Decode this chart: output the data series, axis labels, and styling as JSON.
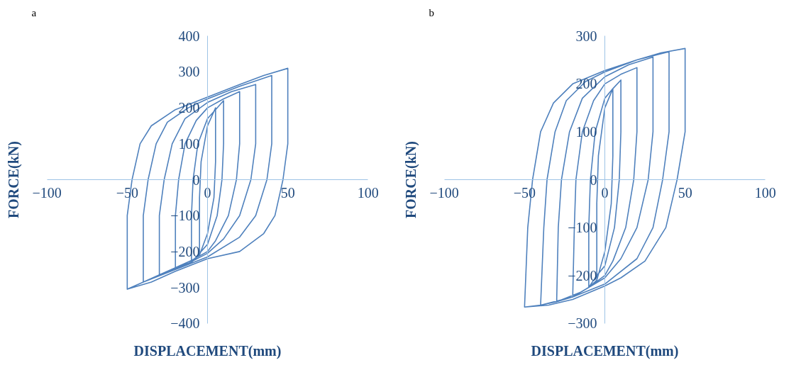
{
  "chart_data": [
    {
      "type": "line",
      "title": "a",
      "xlabel": "DISPLACEMENT(mm)",
      "ylabel": "FORCE(kN)",
      "xlim": [
        -100,
        100
      ],
      "ylim": [
        -400,
        400
      ],
      "xticks": [
        -100,
        -50,
        0,
        50,
        100
      ],
      "yticks": [
        -400,
        -300,
        -200,
        -100,
        0,
        100,
        200,
        300,
        400
      ],
      "grid": false,
      "marker": "none",
      "line_style": "solid",
      "series": [
        {
          "color": "#4f81bd",
          "x": [
            -50,
            -50,
            -47,
            -42,
            -35,
            -20,
            0,
            20,
            35,
            50,
            50,
            47,
            42,
            35,
            20,
            0,
            -20,
            -35,
            -50,
            -40,
            -40,
            -37,
            -32,
            -25,
            -12,
            0,
            20,
            40,
            40,
            37,
            30,
            20,
            0,
            -20,
            -40,
            -30,
            -30,
            -27,
            -22,
            -14,
            0,
            15,
            30,
            30,
            27,
            20,
            10,
            0,
            -15,
            -30,
            -20,
            -20,
            -18,
            -14,
            -7,
            0,
            10,
            20,
            20,
            18,
            13,
            5,
            0,
            -10,
            -20,
            -10,
            -10,
            -9,
            -6,
            0,
            5,
            10,
            10,
            9,
            6,
            0,
            -5,
            -10,
            -5,
            -5,
            -4,
            0,
            5,
            5,
            4,
            0,
            -5
          ],
          "values": [
            -305,
            -100,
            0,
            100,
            150,
            195,
            230,
            265,
            290,
            310,
            100,
            0,
            -100,
            -150,
            -200,
            -220,
            -255,
            -285,
            -305,
            -285,
            -100,
            0,
            100,
            160,
            200,
            225,
            260,
            290,
            100,
            0,
            -100,
            -160,
            -215,
            -250,
            -285,
            -265,
            -100,
            0,
            100,
            170,
            215,
            245,
            265,
            100,
            0,
            -100,
            -165,
            -205,
            -240,
            -265,
            -245,
            -100,
            0,
            100,
            165,
            200,
            225,
            245,
            100,
            0,
            -100,
            -170,
            -200,
            -225,
            -245,
            -230,
            -100,
            0,
            100,
            170,
            195,
            220,
            100,
            0,
            -100,
            -180,
            -205,
            -230,
            -210,
            -50,
            50,
            150,
            200,
            50,
            -50,
            -150,
            -210
          ]
        }
      ]
    },
    {
      "type": "line",
      "title": "b",
      "xlabel": "DISPLACEMENT(mm)",
      "ylabel": "FORCE(kN)",
      "xlim": [
        -100,
        100
      ],
      "ylim": [
        -300,
        300
      ],
      "xticks": [
        -100,
        -50,
        0,
        50,
        100
      ],
      "yticks": [
        -300,
        -200,
        -100,
        0,
        100,
        200,
        300
      ],
      "grid": false,
      "marker": "none",
      "line_style": "solid",
      "series": [
        {
          "color": "#4f81bd",
          "x": [
            -50,
            -48,
            -45,
            -40,
            -32,
            -20,
            0,
            20,
            35,
            50,
            50,
            45,
            38,
            25,
            10,
            0,
            -20,
            -35,
            -50,
            -40,
            -38,
            -36,
            -31,
            -24,
            -12,
            0,
            20,
            40,
            40,
            36,
            30,
            20,
            0,
            -20,
            -40,
            -30,
            -29,
            -27,
            -22,
            -14,
            0,
            15,
            30,
            30,
            27,
            20,
            10,
            0,
            -15,
            -30,
            -20,
            -19,
            -18,
            -14,
            -7,
            0,
            10,
            20,
            20,
            18,
            13,
            5,
            0,
            -10,
            -20,
            -10,
            -10,
            -9,
            -6,
            0,
            5,
            10,
            10,
            9,
            6,
            0,
            -5,
            -10,
            -5,
            -5,
            -4,
            0,
            5,
            5,
            4,
            0,
            -5
          ],
          "values": [
            -266,
            -100,
            0,
            100,
            160,
            200,
            228,
            250,
            265,
            274,
            100,
            0,
            -100,
            -170,
            -205,
            -222,
            -250,
            -262,
            -266,
            -262,
            -100,
            0,
            100,
            165,
            205,
            225,
            250,
            267,
            100,
            0,
            -100,
            -165,
            -218,
            -245,
            -262,
            -255,
            -100,
            0,
            100,
            170,
            215,
            240,
            256,
            100,
            0,
            -100,
            -165,
            -205,
            -235,
            -255,
            -245,
            -100,
            0,
            100,
            165,
            200,
            220,
            234,
            100,
            0,
            -100,
            -170,
            -200,
            -225,
            -245,
            -225,
            -100,
            0,
            100,
            170,
            190,
            208,
            100,
            0,
            -100,
            -180,
            -200,
            -225,
            -210,
            -50,
            50,
            150,
            190,
            50,
            -50,
            -150,
            -210
          ]
        }
      ]
    }
  ]
}
